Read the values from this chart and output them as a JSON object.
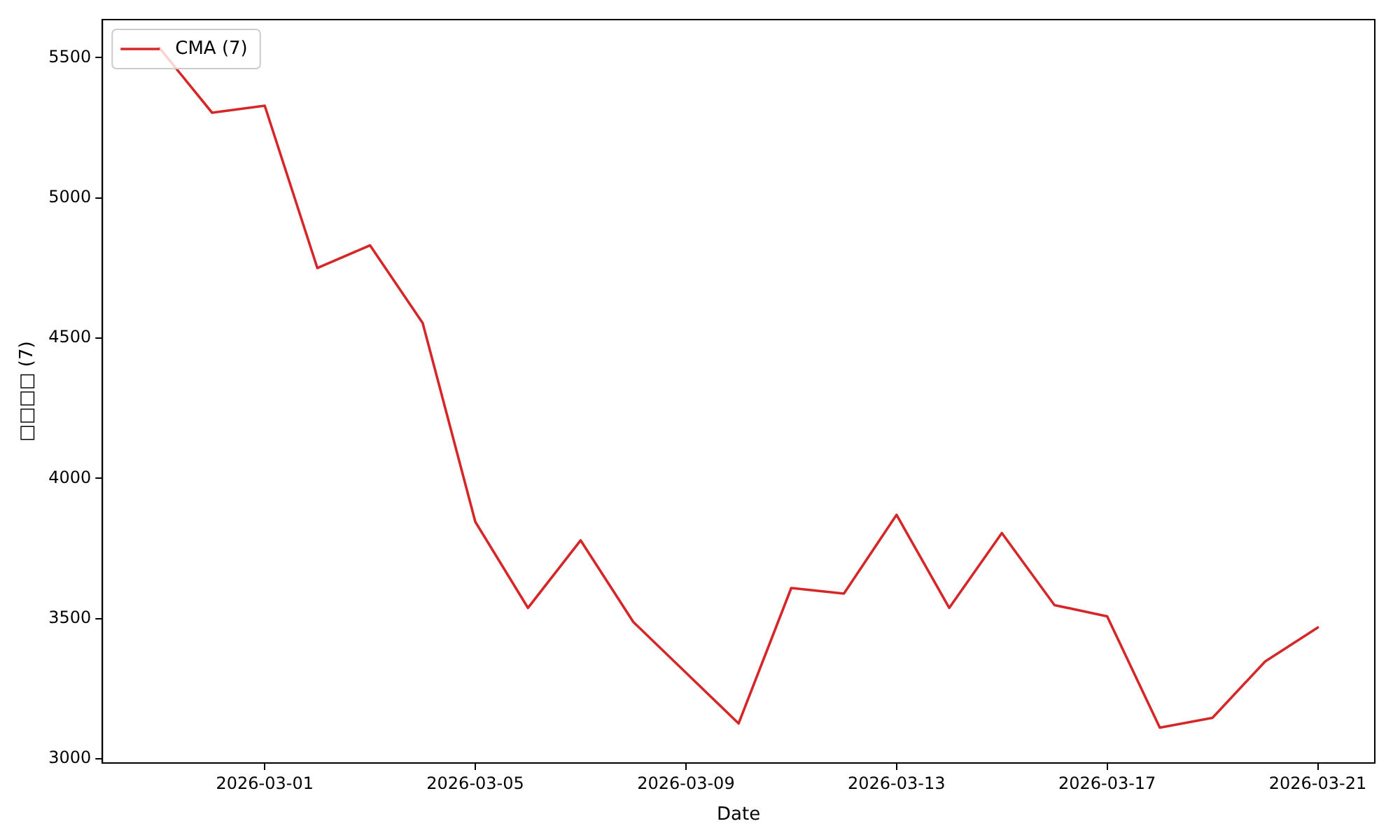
{
  "chart_data": {
    "type": "line",
    "xlabel": "Date",
    "ylabel": "□□□□ (7)",
    "x": [
      "2026-02-27",
      "2026-02-28",
      "2026-03-01",
      "2026-03-02",
      "2026-03-03",
      "2026-03-04",
      "2026-03-05",
      "2026-03-06",
      "2026-03-07",
      "2026-03-08",
      "2026-03-09",
      "2026-03-10",
      "2026-03-11",
      "2026-03-12",
      "2026-03-13",
      "2026-03-14",
      "2026-03-15",
      "2026-03-16",
      "2026-03-17",
      "2026-03-18",
      "2026-03-19",
      "2026-03-20",
      "2026-03-21"
    ],
    "series": [
      {
        "name": "CMA (7)",
        "color": "#d62728",
        "values": [
          5535,
          5304,
          5329,
          4750,
          4831,
          4554,
          3845,
          3538,
          3779,
          3488,
          3307,
          3126,
          3609,
          3589,
          3870,
          3538,
          3805,
          3548,
          3508,
          3111,
          3146,
          3347,
          3468
        ]
      }
    ],
    "xlim": [
      "2026-02-25T22:00",
      "2026-03-22T02:00"
    ],
    "xticks": [
      "2026-03-01",
      "2026-03-05",
      "2026-03-09",
      "2026-03-13",
      "2026-03-17",
      "2026-03-21"
    ],
    "ylim": [
      2985,
      5636
    ],
    "yticks": [
      3000,
      3500,
      4000,
      4500,
      5000,
      5500
    ],
    "grid": false,
    "legend": "top left",
    "marker": "none",
    "line_style": "solid"
  }
}
